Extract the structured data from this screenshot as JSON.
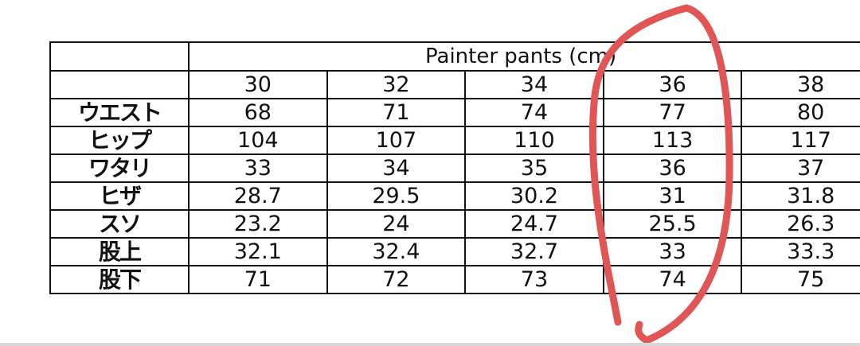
{
  "table": {
    "title": "Painter pants (cm)",
    "sizes": [
      "30",
      "32",
      "34",
      "36",
      "38"
    ],
    "rows": [
      {
        "label": "ウエスト",
        "values": [
          "68",
          "71",
          "74",
          "77",
          "80"
        ]
      },
      {
        "label": "ヒップ",
        "values": [
          "104",
          "107",
          "110",
          "113",
          "117"
        ]
      },
      {
        "label": "ワタリ",
        "values": [
          "33",
          "34",
          "35",
          "36",
          "37"
        ]
      },
      {
        "label": "ヒザ",
        "values": [
          "28.7",
          "29.5",
          "30.2",
          "31",
          "31.8"
        ]
      },
      {
        "label": "スソ",
        "values": [
          "23.2",
          "24",
          "24.7",
          "25.5",
          "26.3"
        ]
      },
      {
        "label": "股上",
        "values": [
          "32.1",
          "32.4",
          "32.7",
          "33",
          "33.3"
        ]
      },
      {
        "label": "股下",
        "values": [
          "71",
          "72",
          "73",
          "74",
          "75"
        ]
      }
    ]
  },
  "annotation": {
    "shape": "hand-drawn circle around size 36 column",
    "color": "#e05555"
  }
}
